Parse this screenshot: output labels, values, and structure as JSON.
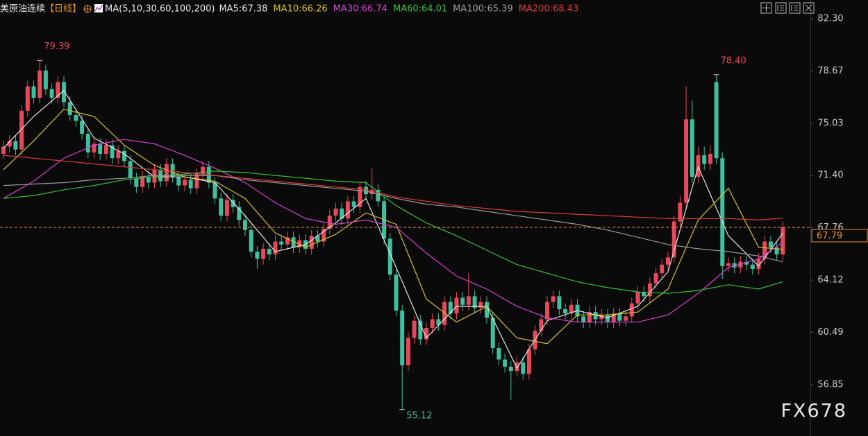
{
  "chart_data": {
    "type": "candlestick",
    "title": "美原油连续",
    "period": "【日线】",
    "ma_label": "MA(5,10,30,60,100,200)",
    "watermark": "FX678",
    "up_color": "#e8485a",
    "down_color": "#3fbf9f",
    "ylim": [
      53.28,
      83.6
    ],
    "yticks": [
      {
        "value": 82.3,
        "label": "82.30"
      },
      78.67,
      75.03,
      {
        "value": 71.4,
        "label": "71.40"
      },
      67.76,
      64.12,
      60.49,
      56.85
    ],
    "last_price": 67.79,
    "last_price_color": "#f0902a",
    "annotations": [
      {
        "value": 79.39,
        "label": "79.39",
        "kind": "high",
        "color": "#e8485a"
      },
      {
        "value": 78.4,
        "label": "78.40",
        "kind": "high",
        "color": "#e8485a"
      },
      {
        "value": 55.12,
        "label": "55.12",
        "kind": "low",
        "color": "#3fbf9f"
      }
    ],
    "open": [
      72.9,
      73.4,
      73.8,
      73.2,
      75.9,
      77.6,
      76.8,
      78.7,
      77.4,
      76.8,
      77.9,
      76.5,
      75.6,
      75.2,
      74.3,
      73.0,
      73.6,
      72.9,
      73.5,
      72.6,
      73.1,
      72.4,
      71.2,
      70.6,
      71.3,
      70.9,
      71.8,
      71.0,
      72.2,
      71.3,
      70.7,
      71.1,
      70.5,
      71.5,
      72.0,
      70.9,
      69.8,
      68.6,
      69.7,
      69.2,
      68.3,
      67.6,
      66.1,
      65.6,
      66.3,
      65.9,
      66.8,
      66.6,
      67.1,
      66.4,
      66.9,
      66.3,
      67.2,
      66.8,
      67.7,
      68.6,
      69.1,
      68.4,
      69.6,
      69.2,
      70.6,
      70.1,
      70.4,
      69.6,
      67.0,
      64.5,
      62.0,
      58.2,
      60.1,
      61.3,
      60.0,
      60.8,
      61.4,
      61.0,
      62.6,
      61.8,
      62.9,
      62.4,
      63.0,
      62.2,
      62.6,
      61.5,
      59.4,
      58.6,
      58.1,
      57.8,
      58.4,
      57.6,
      59.3,
      60.6,
      61.4,
      62.6,
      63.0,
      62.1,
      61.8,
      62.4,
      61.6,
      61.2,
      61.9,
      61.4,
      61.7,
      61.2,
      61.8,
      61.3,
      61.6,
      62.5,
      63.3,
      63.0,
      63.9,
      64.6,
      65.2,
      65.7,
      68.2,
      69.5,
      75.3,
      71.3,
      72.8,
      72.2,
      77.9,
      72.6,
      65.1,
      65.3,
      65.0,
      65.4,
      65.2,
      64.9,
      65.6,
      66.8,
      66.4,
      65.9
    ],
    "high": [
      73.8,
      74.2,
      74.2,
      76.3,
      78.0,
      78.0,
      79.39,
      79.1,
      77.8,
      78.3,
      78.3,
      76.9,
      76.0,
      75.6,
      74.7,
      74.0,
      74.0,
      73.9,
      73.9,
      73.5,
      73.5,
      72.8,
      71.6,
      71.7,
      71.7,
      72.2,
      72.2,
      72.6,
      72.6,
      71.7,
      71.5,
      71.5,
      71.9,
      72.4,
      72.4,
      71.3,
      70.2,
      70.1,
      70.1,
      69.6,
      68.7,
      68.0,
      66.5,
      66.7,
      66.7,
      67.2,
      67.2,
      67.5,
      67.5,
      67.3,
      67.3,
      67.6,
      67.6,
      68.1,
      69.0,
      69.5,
      69.5,
      70.0,
      70.0,
      71.0,
      71.0,
      71.9,
      70.8,
      70.0,
      67.4,
      64.9,
      62.4,
      60.5,
      61.7,
      61.7,
      61.2,
      61.8,
      61.8,
      63.0,
      63.0,
      63.3,
      63.3,
      64.6,
      63.4,
      63.0,
      63.0,
      61.9,
      59.8,
      59.0,
      58.5,
      58.8,
      58.8,
      59.7,
      61.0,
      61.8,
      63.0,
      63.4,
      63.4,
      62.5,
      62.8,
      62.8,
      62.0,
      62.3,
      62.3,
      62.1,
      62.1,
      62.2,
      62.2,
      62.0,
      62.9,
      63.7,
      63.7,
      64.3,
      65.0,
      65.6,
      66.1,
      68.6,
      70.0,
      77.6,
      76.6,
      73.4,
      73.4,
      73.5,
      78.4,
      73.0,
      65.7,
      65.7,
      65.8,
      65.8,
      65.6,
      66.0,
      67.2,
      67.2,
      66.8,
      68.2
    ],
    "low": [
      72.5,
      73.0,
      72.8,
      72.8,
      75.5,
      76.4,
      76.4,
      77.0,
      76.4,
      76.4,
      76.1,
      75.2,
      74.8,
      73.9,
      72.6,
      72.6,
      72.5,
      72.5,
      72.2,
      72.2,
      72.0,
      70.8,
      70.2,
      70.2,
      70.5,
      70.5,
      70.6,
      70.6,
      70.9,
      70.3,
      70.3,
      70.1,
      70.1,
      71.1,
      70.5,
      69.4,
      68.2,
      68.2,
      68.8,
      67.9,
      67.2,
      65.7,
      64.9,
      65.2,
      65.5,
      65.5,
      66.2,
      66.2,
      66.0,
      66.0,
      65.9,
      65.9,
      66.4,
      66.4,
      67.3,
      68.2,
      68.0,
      68.0,
      68.8,
      68.8,
      69.7,
      69.7,
      69.2,
      66.6,
      64.1,
      61.6,
      55.12,
      57.8,
      59.7,
      59.6,
      59.6,
      60.4,
      60.6,
      60.6,
      61.4,
      61.4,
      62.0,
      62.0,
      61.8,
      61.8,
      61.1,
      59.0,
      58.2,
      57.7,
      55.8,
      57.4,
      57.2,
      57.2,
      58.9,
      60.2,
      61.0,
      62.2,
      61.7,
      61.4,
      61.4,
      61.2,
      60.8,
      60.8,
      61.0,
      61.0,
      60.8,
      60.8,
      60.9,
      60.9,
      61.2,
      62.1,
      62.6,
      62.6,
      63.5,
      64.2,
      64.8,
      65.3,
      67.8,
      69.1,
      70.9,
      70.9,
      71.8,
      71.8,
      72.2,
      64.2,
      64.7,
      64.6,
      64.6,
      64.8,
      64.5,
      64.5,
      65.2,
      66.0,
      65.5,
      65.5
    ],
    "close": [
      73.4,
      73.8,
      73.2,
      75.9,
      77.6,
      76.8,
      78.7,
      77.4,
      76.8,
      77.9,
      76.5,
      75.6,
      75.2,
      74.3,
      73.0,
      73.6,
      72.9,
      73.5,
      72.6,
      73.1,
      72.4,
      71.2,
      70.6,
      71.3,
      70.9,
      71.8,
      71.0,
      72.2,
      71.3,
      70.7,
      71.1,
      70.5,
      71.5,
      72.0,
      70.9,
      69.8,
      68.6,
      69.7,
      69.2,
      68.3,
      67.6,
      66.1,
      65.6,
      66.3,
      65.9,
      66.8,
      66.6,
      67.1,
      66.4,
      66.9,
      66.3,
      67.2,
      66.8,
      67.7,
      68.6,
      69.1,
      68.4,
      69.6,
      69.2,
      70.6,
      70.1,
      70.4,
      69.6,
      67.0,
      64.5,
      62.0,
      58.2,
      60.1,
      61.3,
      60.0,
      60.8,
      61.4,
      61.0,
      62.6,
      61.8,
      62.9,
      62.4,
      63.0,
      62.2,
      62.6,
      61.5,
      59.4,
      58.6,
      58.1,
      57.8,
      58.4,
      57.6,
      59.3,
      60.6,
      61.4,
      62.6,
      63.0,
      62.1,
      61.8,
      62.4,
      61.6,
      61.2,
      61.9,
      61.4,
      61.7,
      61.2,
      61.8,
      61.3,
      61.6,
      62.5,
      63.3,
      63.0,
      63.9,
      64.6,
      65.2,
      65.7,
      68.2,
      69.5,
      75.3,
      71.3,
      72.8,
      72.2,
      72.9,
      72.6,
      65.1,
      65.3,
      65.0,
      65.4,
      65.2,
      64.9,
      65.6,
      66.8,
      66.4,
      65.9,
      67.79
    ],
    "ma_x": [
      0,
      5,
      10,
      15,
      20,
      25,
      30,
      35,
      40,
      45,
      50,
      55,
      60,
      65,
      70,
      75,
      80,
      85,
      90,
      95,
      100,
      105,
      110,
      115,
      120,
      125,
      129
    ],
    "series": [
      {
        "name": "MA5:67.38",
        "color": "#e6e6e6",
        "values": [
          73.3,
          75.5,
          77.3,
          74.0,
          72.9,
          71.3,
          71.3,
          70.9,
          68.6,
          66.1,
          66.6,
          68.1,
          69.8,
          65.0,
          60.1,
          62.3,
          62.3,
          58.0,
          61.3,
          62.0,
          61.5,
          62.3,
          64.7,
          72.0,
          67.2,
          65.1,
          67.38
        ]
      },
      {
        "name": "MA10:66.26",
        "color": "#d8c42c",
        "values": [
          71.8,
          73.8,
          76.0,
          75.5,
          73.5,
          72.1,
          71.3,
          71.0,
          69.8,
          67.4,
          66.4,
          67.3,
          68.8,
          68.0,
          62.8,
          61.2,
          62.3,
          60.1,
          59.7,
          61.7,
          61.7,
          61.9,
          63.5,
          68.3,
          70.5,
          66.4,
          66.26
        ]
      },
      {
        "name": "MA30:66.74",
        "color": "#d63fd6",
        "values": [
          69.8,
          71.0,
          72.6,
          73.5,
          73.9,
          73.6,
          72.8,
          71.9,
          70.9,
          69.5,
          68.4,
          68.0,
          68.3,
          67.8,
          66.0,
          64.4,
          63.5,
          62.3,
          61.5,
          61.2,
          61.2,
          61.2,
          61.7,
          63.2,
          65.0,
          65.6,
          66.74
        ]
      },
      {
        "name": "MA60:64.01",
        "color": "#36c236",
        "values": [
          69.8,
          70.0,
          70.4,
          70.7,
          71.1,
          71.3,
          71.5,
          71.7,
          71.6,
          71.4,
          71.2,
          71.0,
          70.9,
          69.3,
          68.1,
          67.2,
          66.2,
          65.2,
          64.6,
          64.0,
          63.6,
          63.3,
          63.2,
          63.4,
          63.8,
          63.5,
          64.01
        ]
      },
      {
        "name": "MA100:65.39",
        "color": "#9a9a9a",
        "values": [
          70.7,
          70.8,
          70.9,
          71.1,
          71.2,
          71.4,
          71.4,
          71.4,
          71.1,
          70.9,
          70.7,
          70.5,
          70.3,
          69.8,
          69.4,
          69.2,
          68.9,
          68.6,
          68.3,
          68.0,
          67.6,
          67.1,
          66.6,
          66.3,
          66.1,
          65.8,
          65.39
        ]
      },
      {
        "name": "MA200:68.43",
        "color": "#e23b3b",
        "values": [
          72.8,
          72.6,
          72.4,
          72.2,
          72.0,
          71.8,
          71.6,
          71.4,
          71.2,
          71.0,
          70.8,
          70.6,
          70.4,
          69.9,
          69.6,
          69.3,
          69.1,
          68.9,
          68.8,
          68.7,
          68.6,
          68.5,
          68.4,
          68.4,
          68.4,
          68.3,
          68.43
        ]
      }
    ]
  }
}
